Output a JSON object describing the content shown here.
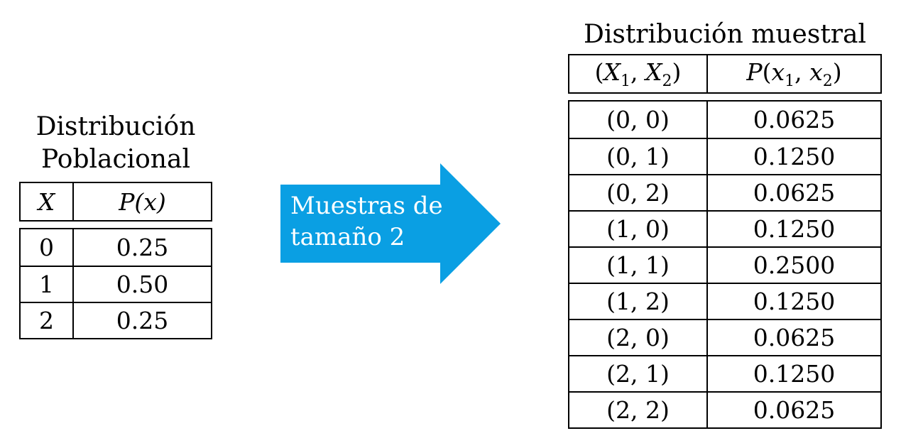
{
  "population": {
    "title_line1": "Distribución",
    "title_line2": "Poblacional",
    "headers": [
      "X",
      "P(x)"
    ],
    "rows": [
      {
        "x": "0",
        "p": "0.25"
      },
      {
        "x": "1",
        "p": "0.50"
      },
      {
        "x": "2",
        "p": "0.25"
      }
    ]
  },
  "arrow": {
    "line1": "Muestras de",
    "line2": "tamaño 2",
    "color": "#0A9FE3"
  },
  "sampling": {
    "title": "Distribución muestral",
    "headers": [
      "(X1, X2)",
      "P(x1, x2)"
    ],
    "rows": [
      {
        "pair": "(0, 0)",
        "p": "0.0625"
      },
      {
        "pair": "(0, 1)",
        "p": "0.1250"
      },
      {
        "pair": "(0, 2)",
        "p": "0.0625"
      },
      {
        "pair": "(1, 0)",
        "p": "0.1250"
      },
      {
        "pair": "(1, 1)",
        "p": "0.2500"
      },
      {
        "pair": "(1, 2)",
        "p": "0.1250"
      },
      {
        "pair": "(2, 0)",
        "p": "0.0625"
      },
      {
        "pair": "(2, 1)",
        "p": "0.1250"
      },
      {
        "pair": "(2, 2)",
        "p": "0.0625"
      }
    ]
  }
}
